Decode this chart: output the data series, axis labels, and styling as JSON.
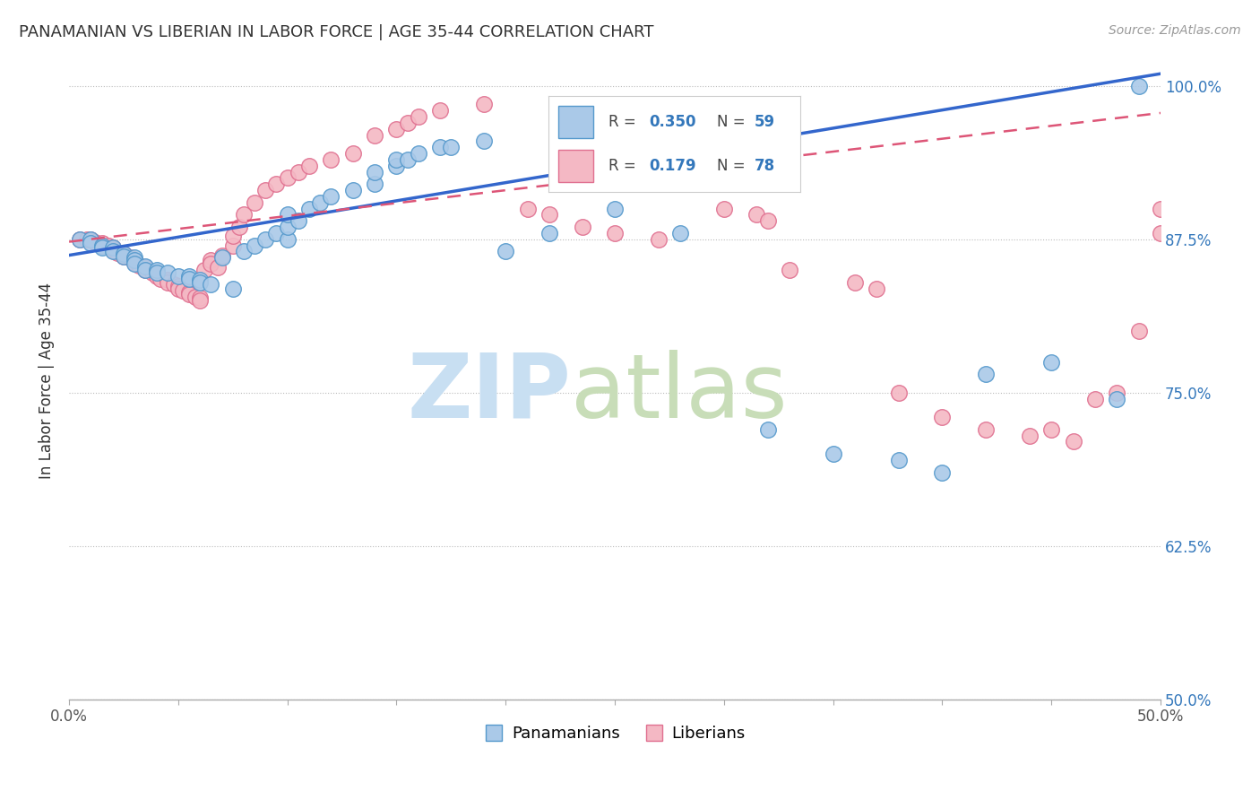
{
  "title": "PANAMANIAN VS LIBERIAN IN LABOR FORCE | AGE 35-44 CORRELATION CHART",
  "source": "Source: ZipAtlas.com",
  "ylabel": "In Labor Force | Age 35-44",
  "xlim": [
    0.0,
    0.5
  ],
  "ylim": [
    0.5,
    1.02
  ],
  "xticks": [
    0.0,
    0.05,
    0.1,
    0.15,
    0.2,
    0.25,
    0.3,
    0.35,
    0.4,
    0.45,
    0.5
  ],
  "xtick_labels": [
    "0.0%",
    "",
    "",
    "",
    "",
    "",
    "",
    "",
    "",
    "",
    "50.0%"
  ],
  "yticks": [
    0.5,
    0.625,
    0.75,
    0.875,
    1.0
  ],
  "ytick_labels": [
    "50.0%",
    "62.5%",
    "75.0%",
    "87.5%",
    "100.0%"
  ],
  "blue_R": 0.35,
  "blue_N": 59,
  "pink_R": 0.179,
  "pink_N": 78,
  "blue_color": "#aac9e8",
  "pink_color": "#f4b8c4",
  "blue_edge_color": "#5599cc",
  "pink_edge_color": "#e07090",
  "blue_line_color": "#3366cc",
  "pink_line_color": "#dd5577",
  "blue_scatter_x": [
    0.005,
    0.01,
    0.01,
    0.015,
    0.015,
    0.02,
    0.02,
    0.025,
    0.025,
    0.03,
    0.03,
    0.03,
    0.035,
    0.035,
    0.04,
    0.04,
    0.045,
    0.05,
    0.055,
    0.055,
    0.06,
    0.06,
    0.065,
    0.07,
    0.075,
    0.08,
    0.085,
    0.09,
    0.095,
    0.1,
    0.1,
    0.1,
    0.105,
    0.11,
    0.115,
    0.12,
    0.13,
    0.14,
    0.14,
    0.15,
    0.15,
    0.155,
    0.16,
    0.17,
    0.175,
    0.19,
    0.2,
    0.22,
    0.25,
    0.28,
    0.3,
    0.32,
    0.35,
    0.38,
    0.4,
    0.42,
    0.45,
    0.48,
    0.49
  ],
  "blue_scatter_y": [
    0.875,
    0.875,
    0.872,
    0.87,
    0.868,
    0.868,
    0.865,
    0.863,
    0.861,
    0.86,
    0.858,
    0.855,
    0.853,
    0.85,
    0.85,
    0.848,
    0.848,
    0.845,
    0.845,
    0.843,
    0.842,
    0.84,
    0.838,
    0.86,
    0.835,
    0.865,
    0.87,
    0.875,
    0.88,
    0.875,
    0.885,
    0.895,
    0.89,
    0.9,
    0.905,
    0.91,
    0.915,
    0.92,
    0.93,
    0.935,
    0.94,
    0.94,
    0.945,
    0.95,
    0.95,
    0.955,
    0.865,
    0.88,
    0.9,
    0.88,
    0.92,
    0.72,
    0.7,
    0.695,
    0.685,
    0.765,
    0.775,
    0.745,
    1.0
  ],
  "pink_scatter_x": [
    0.005,
    0.008,
    0.01,
    0.012,
    0.015,
    0.015,
    0.018,
    0.02,
    0.02,
    0.022,
    0.025,
    0.025,
    0.028,
    0.03,
    0.03,
    0.032,
    0.035,
    0.035,
    0.038,
    0.04,
    0.04,
    0.042,
    0.045,
    0.045,
    0.048,
    0.05,
    0.05,
    0.052,
    0.055,
    0.055,
    0.058,
    0.06,
    0.06,
    0.062,
    0.065,
    0.065,
    0.068,
    0.07,
    0.075,
    0.075,
    0.078,
    0.08,
    0.085,
    0.09,
    0.095,
    0.1,
    0.105,
    0.11,
    0.12,
    0.13,
    0.14,
    0.15,
    0.155,
    0.16,
    0.17,
    0.19,
    0.21,
    0.22,
    0.235,
    0.25,
    0.27,
    0.3,
    0.315,
    0.32,
    0.33,
    0.36,
    0.37,
    0.38,
    0.4,
    0.42,
    0.44,
    0.45,
    0.46,
    0.47,
    0.48,
    0.49,
    0.5,
    0.5
  ],
  "pink_scatter_y": [
    0.875,
    0.875,
    0.875,
    0.873,
    0.872,
    0.87,
    0.87,
    0.868,
    0.866,
    0.864,
    0.863,
    0.861,
    0.86,
    0.858,
    0.856,
    0.854,
    0.852,
    0.85,
    0.848,
    0.847,
    0.845,
    0.843,
    0.842,
    0.84,
    0.838,
    0.837,
    0.835,
    0.833,
    0.832,
    0.83,
    0.828,
    0.827,
    0.825,
    0.85,
    0.858,
    0.855,
    0.852,
    0.862,
    0.87,
    0.878,
    0.885,
    0.895,
    0.905,
    0.915,
    0.92,
    0.925,
    0.93,
    0.935,
    0.94,
    0.945,
    0.96,
    0.965,
    0.97,
    0.975,
    0.98,
    0.985,
    0.9,
    0.895,
    0.885,
    0.88,
    0.875,
    0.9,
    0.895,
    0.89,
    0.85,
    0.84,
    0.835,
    0.75,
    0.73,
    0.72,
    0.715,
    0.72,
    0.71,
    0.745,
    0.75,
    0.8,
    0.88,
    0.9
  ]
}
